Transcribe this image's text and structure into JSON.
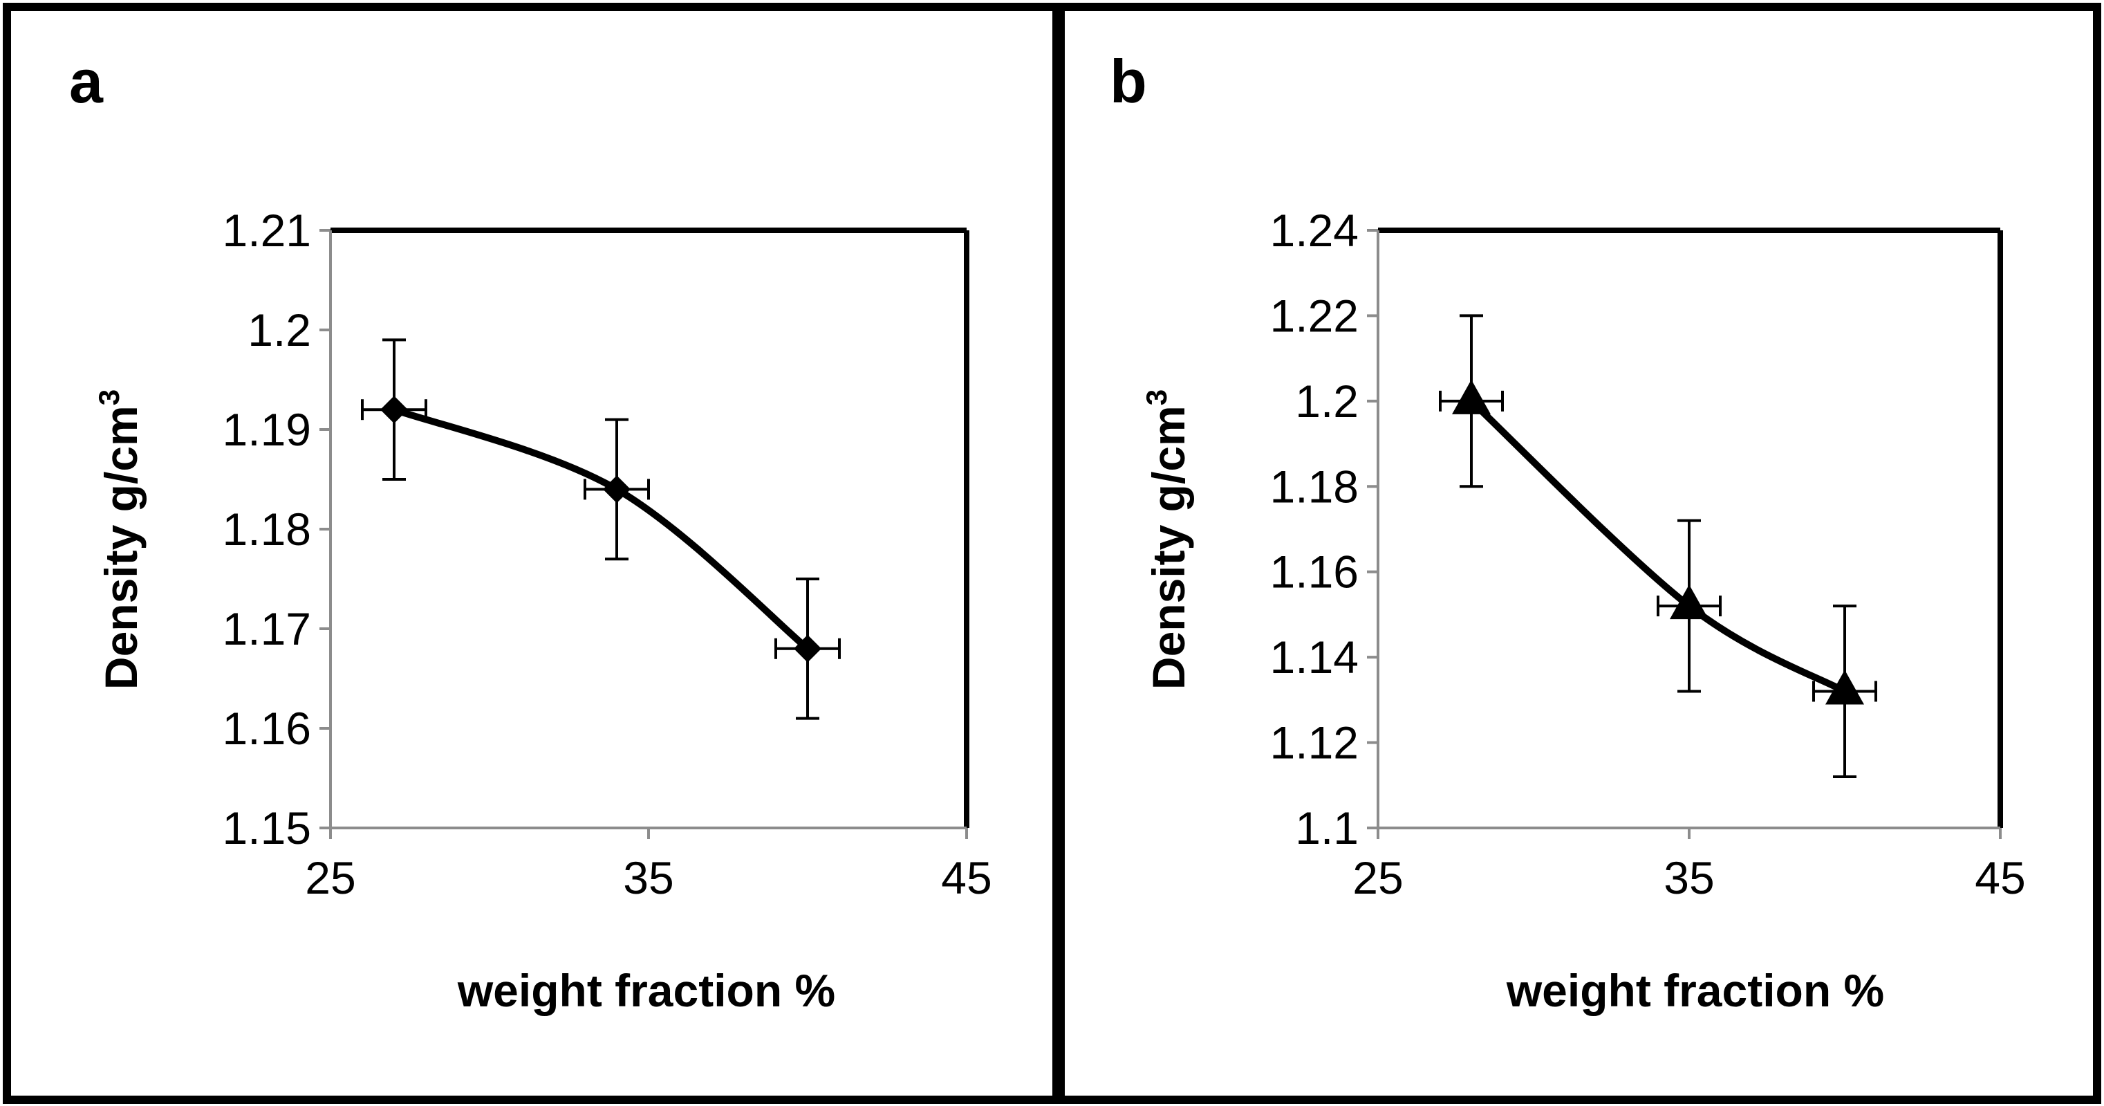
{
  "chart_data": [
    {
      "panel": "a",
      "type": "line",
      "smooth": true,
      "marker": "diamond",
      "xlabel": "weight fraction %",
      "ylabel_main": "Density  g/cm",
      "ylabel_sup": "3",
      "xlim": [
        25,
        45
      ],
      "ylim": [
        1.15,
        1.21
      ],
      "xticks": [
        25,
        35,
        45
      ],
      "xtick_labels": [
        "25",
        "35",
        "45"
      ],
      "yticks": [
        1.15,
        1.16,
        1.17,
        1.18,
        1.19,
        1.2,
        1.21
      ],
      "ytick_labels": [
        "1.15",
        "1.16",
        "1.17",
        "1.18",
        "1.19",
        "1.2",
        "1.21"
      ],
      "series": [
        {
          "name": "density",
          "x": [
            27,
            34,
            40
          ],
          "y": [
            1.192,
            1.184,
            1.168
          ],
          "y_err": [
            0.007,
            0.007,
            0.007
          ],
          "x_err": [
            1,
            1,
            1
          ]
        }
      ]
    },
    {
      "panel": "b",
      "type": "line",
      "smooth": true,
      "marker": "triangle",
      "xlabel": "weight fraction %",
      "ylabel_main": "Density  g/cm",
      "ylabel_sup": "3",
      "xlim": [
        25,
        45
      ],
      "ylim": [
        1.1,
        1.24
      ],
      "xticks": [
        25,
        35,
        45
      ],
      "xtick_labels": [
        "25",
        "35",
        "45"
      ],
      "yticks": [
        1.1,
        1.12,
        1.14,
        1.16,
        1.18,
        1.2,
        1.22,
        1.24
      ],
      "ytick_labels": [
        "1.1",
        "1.12",
        "1.14",
        "1.16",
        "1.18",
        "1.2",
        "1.22",
        "1.24"
      ],
      "series": [
        {
          "name": "density",
          "x": [
            28,
            35,
            40
          ],
          "y": [
            1.2,
            1.152,
            1.132
          ],
          "y_err": [
            0.02,
            0.02,
            0.02
          ],
          "x_err": [
            1,
            1,
            1
          ]
        }
      ]
    }
  ]
}
